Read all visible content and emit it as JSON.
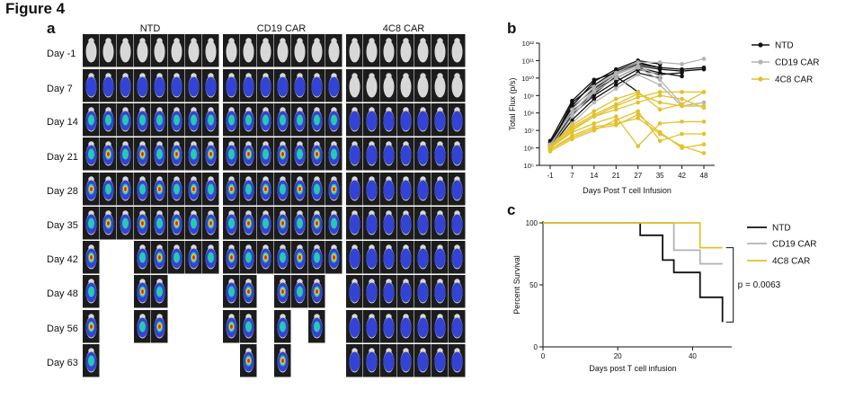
{
  "figure_title": "Figure 4",
  "panels": {
    "a": "a",
    "b": "b",
    "c": "c"
  },
  "imaging": {
    "groups": [
      "NTD",
      "CD19 CAR",
      "4C8 CAR"
    ],
    "days": [
      "Day -1",
      "Day 7",
      "Day 14",
      "Day 21",
      "Day 28",
      "Day 35",
      "Day 42",
      "Day 48",
      "Day 56",
      "Day 63"
    ],
    "colors": {
      "tile": "#1c1c1c",
      "body": "#d8d8d8",
      "signal_low": "#2a3bd6",
      "signal_mid": "#27c9b0",
      "signal_high": "#e8242a",
      "signal_peak": "#f5d21b"
    }
  },
  "chart_data": [
    {
      "type": "line",
      "panel": "b",
      "ylabel": "Total Flux (p/s)",
      "xlabel": "Days Post T cell Infusion",
      "x": [
        "-1",
        "7",
        "14",
        "21",
        "27",
        "35",
        "42",
        "48"
      ],
      "ylim_log10": [
        5,
        12
      ],
      "y_ticks": [
        "10⁵",
        "10⁶",
        "10⁷",
        "10⁸",
        "10⁹",
        "10¹⁰",
        "10¹¹",
        "10¹²"
      ],
      "legend": [
        "NTD",
        "CD19 CAR",
        "4C8 CAR"
      ],
      "legend_position": "right",
      "series": [
        {
          "name": "NTD",
          "color": "#111111",
          "lines": [
            [
              6.1,
              8.6,
              9.6,
              10.4,
              10.9,
              10.6,
              null,
              null
            ],
            [
              6.2,
              8.3,
              9.4,
              10.2,
              10.7,
              10.5,
              10.4,
              10.5
            ],
            [
              6.0,
              8.0,
              9.3,
              10.0,
              10.6,
              10.3,
              10.1,
              null
            ],
            [
              6.3,
              8.4,
              9.8,
              10.5,
              11.0,
              10.8,
              null,
              null
            ],
            [
              6.1,
              7.9,
              9.0,
              9.8,
              10.5,
              10.2,
              10.3,
              null
            ],
            [
              6.0,
              7.6,
              8.8,
              9.6,
              10.3,
              10.0,
              null,
              null
            ],
            [
              6.2,
              8.1,
              9.1,
              10.1,
              9.2,
              null,
              null,
              null
            ],
            [
              6.4,
              8.7,
              9.9,
              10.3,
              10.8,
              10.6,
              10.5,
              10.6
            ]
          ]
        },
        {
          "name": "CD19 CAR",
          "color": "#b3b3b3",
          "lines": [
            [
              6.1,
              8.2,
              9.5,
              10.3,
              10.9,
              10.9,
              10.8,
              11.1
            ],
            [
              6.0,
              7.8,
              9.2,
              10.0,
              10.6,
              9.9,
              8.5,
              null
            ],
            [
              6.2,
              8.0,
              9.3,
              10.2,
              10.7,
              10.1,
              null,
              null
            ],
            [
              5.9,
              7.4,
              8.6,
              9.4,
              10.2,
              9.6,
              8.4,
              8.6
            ]
          ]
        },
        {
          "name": "4C8 CAR",
          "color": "#e3c12b",
          "lines": [
            [
              6.0,
              7.0,
              7.8,
              8.4,
              8.9,
              9.2,
              9.2,
              9.2
            ],
            [
              5.9,
              6.6,
              7.1,
              7.3,
              7.9,
              6.9,
              6.0,
              6.2
            ],
            [
              6.1,
              7.3,
              8.1,
              8.8,
              9.2,
              8.2,
              8.5,
              9.2
            ],
            [
              6.0,
              6.9,
              7.4,
              7.8,
              6.1,
              7.4,
              7.5,
              7.5
            ],
            [
              5.8,
              6.5,
              7.0,
              7.6,
              8.1,
              6.4,
              6.8,
              6.8
            ],
            [
              6.1,
              7.1,
              7.8,
              8.2,
              8.6,
              9.0,
              8.8,
              8.3
            ],
            [
              5.9,
              6.7,
              7.2,
              7.4,
              7.7,
              6.8,
              6.1,
              5.7
            ],
            [
              6.0,
              7.2,
              7.9,
              8.5,
              9.1,
              8.6,
              8.4,
              8.4
            ]
          ]
        }
      ]
    },
    {
      "type": "line",
      "subtype": "step",
      "panel": "c",
      "ylabel": "Percent Survival",
      "xlabel": "Days post T cell infusion",
      "xlim": [
        0,
        50
      ],
      "ylim": [
        0,
        100
      ],
      "x_ticks": [
        "0",
        "20",
        "40"
      ],
      "y_ticks": [
        "0",
        "50",
        "100"
      ],
      "legend": [
        "NTD",
        "CD19 CAR",
        "4C8 CAR"
      ],
      "legend_position": "right",
      "annotation": "p = 0.0063",
      "series": [
        {
          "name": "NTD",
          "color": "#111111",
          "steps": [
            [
              0,
              100
            ],
            [
              26,
              100
            ],
            [
              26,
              90
            ],
            [
              32,
              90
            ],
            [
              32,
              70
            ],
            [
              35,
              70
            ],
            [
              35,
              60
            ],
            [
              42,
              60
            ],
            [
              42,
              40
            ],
            [
              48,
              40
            ],
            [
              48,
              20
            ]
          ]
        },
        {
          "name": "CD19 CAR",
          "color": "#b3b3b3",
          "steps": [
            [
              0,
              100
            ],
            [
              35,
              100
            ],
            [
              35,
              78
            ],
            [
              42,
              78
            ],
            [
              42,
              67
            ],
            [
              48,
              67
            ]
          ]
        },
        {
          "name": "4C8 CAR",
          "color": "#e3c12b",
          "steps": [
            [
              0,
              100
            ],
            [
              42,
              100
            ],
            [
              42,
              80
            ],
            [
              48,
              80
            ]
          ]
        }
      ]
    }
  ]
}
